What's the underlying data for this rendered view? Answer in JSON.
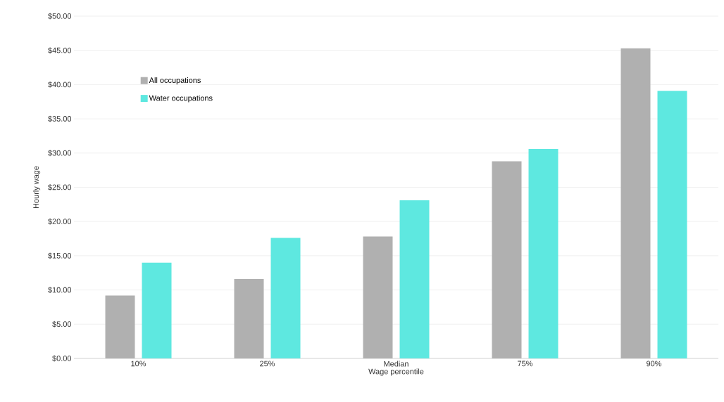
{
  "chart_data": {
    "type": "bar",
    "xlabel": "Wage percentile",
    "ylabel": "Hourly wage",
    "categories": [
      "10%",
      "25%",
      "Median",
      "75%",
      "90%"
    ],
    "series": [
      {
        "name": "All occupations",
        "color": "#b0b0b0",
        "values": [
          9.2,
          11.6,
          17.8,
          28.8,
          45.3
        ]
      },
      {
        "name": "Water occupations",
        "color": "#5ee8e0",
        "values": [
          14,
          17.6,
          23.1,
          30.6,
          39.1
        ]
      }
    ],
    "ylim": [
      0,
      50
    ],
    "yticks": [
      {
        "value": 0,
        "label": "$0.00"
      },
      {
        "value": 5,
        "label": "$5.00"
      },
      {
        "value": 10,
        "label": "$10.00"
      },
      {
        "value": 15,
        "label": "$15.00"
      },
      {
        "value": 20,
        "label": "$20.00"
      },
      {
        "value": 25,
        "label": "$25.00"
      },
      {
        "value": 30,
        "label": "$30.00"
      },
      {
        "value": 35,
        "label": "$35.00"
      },
      {
        "value": 40,
        "label": "$40.00"
      },
      {
        "value": 45,
        "label": "$45.00"
      },
      {
        "value": 50,
        "label": "$50.00"
      }
    ],
    "grid": "y",
    "legend": "top left"
  }
}
